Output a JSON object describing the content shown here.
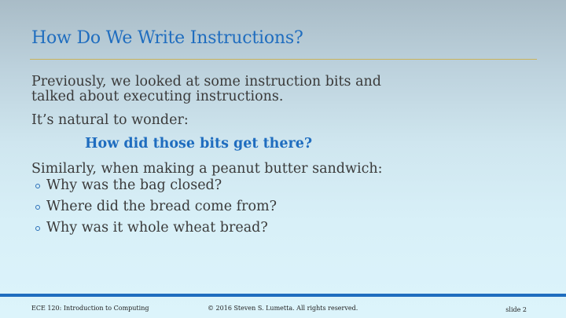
{
  "slide": {
    "title": "How Do We Write Instructions?",
    "paragraphs": [
      "Previously, we looked at some instruction bits and talked about executing instructions.",
      "It’s natural to wonder:"
    ],
    "emphasis": "How did those bits get there?",
    "paragraph_after": "Similarly, when making a peanut butter sandwich:",
    "bullets": [
      "Why was the bag closed?",
      "Where did the bread come from?",
      "Why was it whole wheat bread?"
    ]
  },
  "footer": {
    "course": "ECE 120: Introduction to Computing",
    "copyright": "© 2016 Steven S. Lumetta.  All rights reserved.",
    "slide_label": "slide 2"
  },
  "colors": {
    "title": "#1f6dbf",
    "emphasis": "#1f6dbf",
    "body_text": "#3a3a3a",
    "title_rule": "#c9b25a",
    "footer_bar": "#1f6dbf"
  }
}
